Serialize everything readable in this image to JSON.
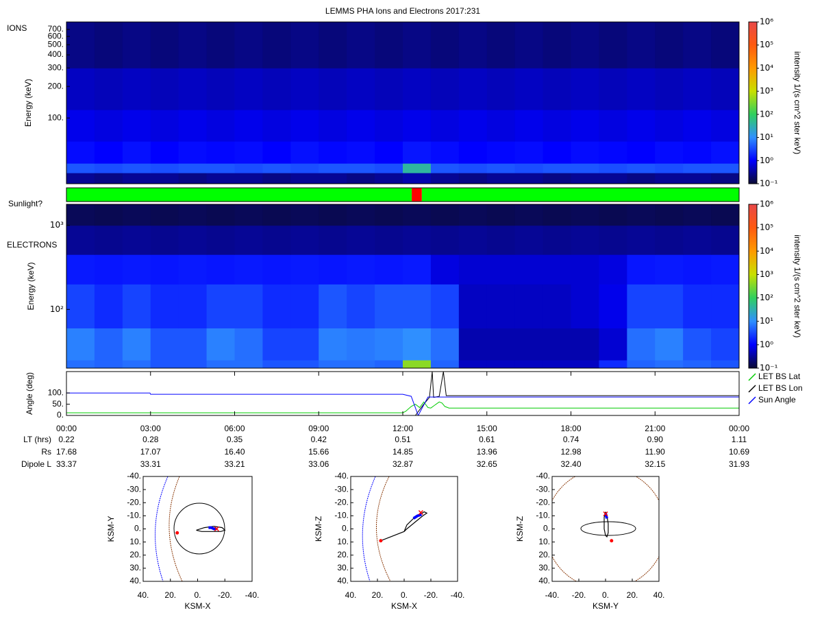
{
  "chart_data": [
    {
      "type": "heatmap",
      "title": "LEMMS PHA Ions and Electrons  2017:231",
      "label": "IONS",
      "ylabel": "Energy (keV)",
      "log_y": true,
      "xlim": [
        0,
        24
      ],
      "ylim": [
        23.6,
        825
      ],
      "yticks": [
        {
          "value": 100,
          "label": "100."
        },
        {
          "value": 200,
          "label": "200."
        },
        {
          "value": 300,
          "label": "300."
        },
        {
          "value": 400,
          "label": "400."
        },
        {
          "value": 500,
          "label": "500."
        },
        {
          "value": 600,
          "label": "600."
        },
        {
          "value": 700,
          "label": "700."
        }
      ],
      "x_bins": [
        0,
        1,
        2,
        3,
        4,
        5,
        6,
        7,
        8,
        9,
        10,
        11,
        12,
        13,
        14,
        15,
        16,
        17,
        18,
        19,
        20,
        21,
        22,
        23,
        24
      ],
      "y_bins": [
        23.6,
        30,
        37,
        60,
        120,
        300,
        825
      ],
      "z": [
        [
          0.3,
          0.25,
          0.3,
          0.3,
          0.25,
          0.3,
          0.3,
          0.25,
          0.3,
          0.3,
          0.25,
          0.3,
          0.4,
          0.3,
          0.25,
          0.3,
          0.3,
          0.25,
          0.3,
          0.3,
          0.25,
          0.3,
          0.3,
          0.25
        ],
        [
          4,
          3.5,
          4,
          3.5,
          4,
          4,
          3.5,
          4,
          3.5,
          4,
          4,
          3.5,
          40,
          4,
          3.5,
          4,
          3.5,
          4,
          4,
          3.5,
          4,
          3.5,
          4,
          4
        ],
        [
          1.2,
          1,
          1.3,
          1,
          1.2,
          1.1,
          1.2,
          1,
          1.3,
          1.1,
          1.2,
          1,
          1.4,
          1.2,
          1,
          1.1,
          1.2,
          1,
          1.2,
          1.1,
          1,
          1.2,
          1.1,
          1.3
        ],
        [
          0.8,
          0.7,
          0.8,
          0.7,
          0.8,
          0.7,
          0.8,
          0.7,
          0.8,
          0.7,
          0.8,
          0.7,
          0.8,
          0.7,
          0.8,
          0.7,
          0.8,
          0.7,
          0.8,
          0.7,
          0.8,
          0.7,
          0.8,
          0.7
        ],
        [
          0.5,
          0.45,
          0.5,
          0.45,
          0.5,
          0.45,
          0.5,
          0.45,
          0.5,
          0.45,
          0.5,
          0.45,
          0.5,
          0.45,
          0.5,
          0.45,
          0.5,
          0.45,
          0.5,
          0.45,
          0.5,
          0.45,
          0.5,
          0.45
        ],
        [
          0.25,
          0.22,
          0.25,
          0.22,
          0.25,
          0.22,
          0.25,
          0.22,
          0.25,
          0.22,
          0.25,
          0.22,
          0.25,
          0.22,
          0.25,
          0.22,
          0.25,
          0.22,
          0.25,
          0.22,
          0.25,
          0.22,
          0.25,
          0.22
        ]
      ],
      "zlim": [
        0.1,
        1000000
      ],
      "zlabel": "intensity 1/(s cm^2 ster keV)",
      "zticks": [
        {
          "value": 0.1,
          "label": "10⁻¹"
        },
        {
          "value": 1,
          "label": "10⁰"
        },
        {
          "value": 10,
          "label": "10¹"
        },
        {
          "value": 100,
          "label": "10²"
        },
        {
          "value": 1000,
          "label": "10³"
        },
        {
          "value": 10000,
          "label": "10⁴"
        },
        {
          "value": 100000,
          "label": "10⁵"
        },
        {
          "value": 1000000,
          "label": "10⁶"
        }
      ],
      "colormap": [
        "#0b0b34",
        "#0000ff",
        "#2f8fff",
        "#2fcf5f",
        "#c8e000",
        "#ff9a00",
        "#ff5a10",
        "#e84848"
      ]
    },
    {
      "type": "timeline",
      "label": "Sunlight?",
      "xlim": [
        0,
        24
      ],
      "intervals": [
        {
          "start": 0,
          "end": 12.32,
          "color": "#00ff00"
        },
        {
          "start": 12.32,
          "end": 12.68,
          "color": "#ff0000"
        },
        {
          "start": 12.68,
          "end": 24,
          "color": "#00ff00"
        }
      ]
    },
    {
      "type": "heatmap",
      "label": "ELECTRONS",
      "ylabel": "Energy (keV)",
      "log_y": true,
      "xlim": [
        0,
        24
      ],
      "ylim": [
        20,
        1780
      ],
      "yticks": [
        {
          "value": 100,
          "label": "10²"
        },
        {
          "value": 1000,
          "label": "10³"
        }
      ],
      "x_bins": [
        0,
        1,
        2,
        3,
        4,
        5,
        6,
        7,
        8,
        9,
        10,
        11,
        12,
        13,
        14,
        15,
        16,
        17,
        18,
        19,
        20,
        21,
        22,
        23,
        24
      ],
      "y_bins": [
        20,
        25,
        60,
        200,
        450,
        1000,
        1780
      ],
      "z": [
        [
          6,
          5,
          6,
          4,
          4,
          6,
          6,
          4,
          4,
          6,
          6,
          5,
          400,
          5,
          0.5,
          0.5,
          0.5,
          0.5,
          0.5,
          2,
          5,
          6,
          5,
          4
        ],
        [
          8,
          5,
          8,
          4,
          4,
          8,
          6,
          3,
          3,
          8,
          7,
          8,
          10,
          6,
          0.4,
          0.4,
          0.4,
          0.4,
          0.4,
          0.6,
          6,
          8,
          4,
          3
        ],
        [
          3,
          2,
          3,
          2,
          2,
          3,
          3,
          2,
          2,
          4,
          3,
          4,
          4,
          3,
          0.5,
          0.5,
          0.5,
          0.5,
          0.6,
          0.8,
          3,
          3,
          2,
          2
        ],
        [
          1.5,
          1.4,
          1.5,
          1.4,
          1.5,
          1.4,
          1.5,
          1.4,
          1.5,
          1.4,
          1.5,
          1.4,
          1.5,
          0.7,
          0.6,
          0.6,
          0.6,
          0.6,
          0.6,
          0.7,
          1.4,
          1.5,
          1.4,
          1.5
        ],
        [
          0.3,
          0.28,
          0.3,
          0.28,
          0.3,
          0.28,
          0.3,
          0.28,
          0.3,
          0.28,
          0.3,
          0.28,
          0.3,
          0.28,
          0.3,
          0.28,
          0.3,
          0.28,
          0.3,
          0.28,
          0.3,
          0.28,
          0.3,
          0.28
        ],
        [
          0.15,
          0.14,
          0.15,
          0.14,
          0.15,
          0.14,
          0.15,
          0.14,
          0.15,
          0.14,
          0.15,
          0.14,
          0.15,
          0.14,
          0.15,
          0.14,
          0.15,
          0.14,
          0.15,
          0.14,
          0.15,
          0.14,
          0.15,
          0.14
        ]
      ],
      "zlim": [
        0.1,
        1000000
      ],
      "zlabel": "intensity 1/(s cm^2 ster keV)",
      "zticks": [
        {
          "value": 0.1,
          "label": "10⁻¹"
        },
        {
          "value": 1,
          "label": "10⁰"
        },
        {
          "value": 10,
          "label": "10¹"
        },
        {
          "value": 100,
          "label": "10²"
        },
        {
          "value": 1000,
          "label": "10³"
        },
        {
          "value": 10000,
          "label": "10⁴"
        },
        {
          "value": 100000,
          "label": "10⁵"
        },
        {
          "value": 1000000,
          "label": "10⁶"
        }
      ],
      "colormap": [
        "#0b0b34",
        "#0000ff",
        "#2f8fff",
        "#2fcf5f",
        "#c8e000",
        "#ff9a00",
        "#ff5a10",
        "#e84848"
      ]
    },
    {
      "type": "line",
      "ylabel": "Angle (deg)",
      "xlim": [
        0,
        24
      ],
      "ylim": [
        0,
        195
      ],
      "yticks": [
        {
          "value": 0,
          "label": "0."
        },
        {
          "value": 50,
          "label": "50."
        },
        {
          "value": 100,
          "label": "100."
        }
      ],
      "xticks": [
        {
          "value": 0,
          "label": "00:00"
        },
        {
          "value": 3,
          "label": "03:00"
        },
        {
          "value": 6,
          "label": "06:00"
        },
        {
          "value": 9,
          "label": "09:00"
        },
        {
          "value": 12,
          "label": "12:00"
        },
        {
          "value": 15,
          "label": "15:00"
        },
        {
          "value": 18,
          "label": "18:00"
        },
        {
          "value": 21,
          "label": "21:00"
        },
        {
          "value": 24,
          "label": "00:00"
        }
      ],
      "series": [
        {
          "name": "LET BS Lat",
          "color": "#00cc00",
          "x": [
            0,
            12.0,
            12.1,
            12.3,
            12.45,
            12.6,
            12.75,
            12.9,
            13.0,
            13.3,
            13.4,
            13.5,
            13.65,
            24
          ],
          "values": [
            12,
            12,
            18,
            40,
            50,
            35,
            60,
            35,
            33,
            60,
            55,
            40,
            33,
            33
          ]
        },
        {
          "name": "LET BS Lon",
          "color": "#000000",
          "x": [
            12.45,
            12.75,
            12.95,
            13.05,
            13.1,
            13.3,
            13.45,
            13.55,
            24
          ],
          "values": [
            0,
            50,
            80,
            195,
            80,
            85,
            195,
            88,
            88
          ]
        },
        {
          "name": "Sun Angle",
          "color": "#0000ff",
          "x": [
            0,
            2.98,
            3.0,
            12.0,
            12.3,
            12.55,
            12.9,
            13.5,
            24
          ],
          "values": [
            100,
            100,
            94,
            94,
            85,
            0,
            82,
            82,
            82
          ]
        }
      ],
      "legend": "outside-right",
      "rows": [
        {
          "label": "LT (hrs)",
          "values": [
            "0.22",
            "0.28",
            "0.35",
            "0.42",
            "0.51",
            "0.61",
            "0.74",
            "0.90",
            "1.11"
          ]
        },
        {
          "label": "Rs",
          "values": [
            "17.68",
            "17.07",
            "16.40",
            "15.66",
            "14.85",
            "13.96",
            "12.98",
            "11.90",
            "10.69"
          ]
        },
        {
          "label": "Dipole L",
          "values": [
            "33.37",
            "33.31",
            "33.21",
            "33.06",
            "32.87",
            "32.65",
            "32.40",
            "32.15",
            "31.93"
          ]
        }
      ]
    },
    {
      "type": "orbit",
      "xlabel": "KSM-X",
      "ylabel": "KSM-Y",
      "xlim": [
        40,
        -40
      ],
      "ylim": [
        40,
        -40
      ],
      "xticks": [
        {
          "value": 40,
          "label": "40."
        },
        {
          "value": 20,
          "label": "20."
        },
        {
          "value": 0,
          "label": "0."
        },
        {
          "value": -20,
          "label": "-20."
        },
        {
          "value": -40,
          "label": "-40."
        }
      ],
      "yticks": [
        {
          "value": -40,
          "label": "-40."
        },
        {
          "value": -30,
          "label": "-30."
        },
        {
          "value": -20,
          "label": "-20."
        },
        {
          "value": -10,
          "label": "-10."
        },
        {
          "value": 0,
          "label": "0."
        },
        {
          "value": 10,
          "label": "10."
        },
        {
          "value": 20,
          "label": "20."
        },
        {
          "value": 30,
          "label": "30."
        },
        {
          "value": 40,
          "label": "40."
        }
      ],
      "colors": {
        "trajectory": "#000000",
        "recent": "#0000ff",
        "position": "#ff0000"
      },
      "trajectory": {
        "x": [
          1,
          -5,
          -12,
          -18,
          -20,
          -17,
          -10,
          -3,
          1
        ],
        "y": [
          1,
          -1,
          -2,
          -1,
          1,
          2,
          2,
          2,
          1
        ]
      },
      "recent": {
        "x": [
          -8,
          -10,
          -12,
          -14
        ],
        "y": [
          -1,
          -1,
          0,
          0
        ]
      },
      "start": {
        "x": 15,
        "y": 3
      },
      "end": {
        "x": -14,
        "y": 0
      }
    },
    {
      "type": "orbit",
      "xlabel": "KSM-X",
      "ylabel": "KSM-Z",
      "xlim": [
        40,
        -40
      ],
      "ylim": [
        40,
        -40
      ],
      "xticks": [
        {
          "value": 40,
          "label": "40."
        },
        {
          "value": 20,
          "label": "20."
        },
        {
          "value": 0,
          "label": "0."
        },
        {
          "value": -20,
          "label": "-20."
        },
        {
          "value": -40,
          "label": "-40."
        }
      ],
      "yticks": [
        {
          "value": -40,
          "label": "-40."
        },
        {
          "value": -30,
          "label": "-30."
        },
        {
          "value": -20,
          "label": "-20."
        },
        {
          "value": -10,
          "label": "-10."
        },
        {
          "value": 0,
          "label": "0."
        },
        {
          "value": 10,
          "label": "10."
        },
        {
          "value": 20,
          "label": "20."
        },
        {
          "value": 30,
          "label": "30."
        },
        {
          "value": 40,
          "label": "40."
        }
      ],
      "colors": {
        "trajectory": "#000000",
        "recent": "#0000ff",
        "position": "#ff0000"
      },
      "trajectory": {
        "x": [
          17.5,
          0,
          -2,
          -8,
          -14,
          -17,
          -15,
          -8,
          -2,
          0
        ],
        "y": [
          9,
          2,
          0,
          -5,
          -10,
          -12,
          -13,
          -9,
          -3,
          2
        ]
      },
      "recent": {
        "x": [
          -7,
          -10,
          -13
        ],
        "y": [
          -8,
          -10,
          -11
        ]
      },
      "start": {
        "x": 17.5,
        "y": 9
      },
      "end": {
        "x": -12.5,
        "y": -12.5
      }
    },
    {
      "type": "orbit",
      "xlabel": "KSM-Y",
      "ylabel": "KSM-Z",
      "xlim": [
        -40,
        40
      ],
      "ylim": [
        40,
        -40
      ],
      "xticks": [
        {
          "value": -40,
          "label": "-40."
        },
        {
          "value": -20,
          "label": "-20."
        },
        {
          "value": 0,
          "label": "0."
        },
        {
          "value": 20,
          "label": "20."
        },
        {
          "value": 40,
          "label": "40."
        }
      ],
      "yticks": [
        {
          "value": -40,
          "label": "-40."
        },
        {
          "value": -30,
          "label": "-30."
        },
        {
          "value": -20,
          "label": "-20."
        },
        {
          "value": -10,
          "label": "-10."
        },
        {
          "value": 0,
          "label": "0."
        },
        {
          "value": 10,
          "label": "10."
        },
        {
          "value": 20,
          "label": "20."
        },
        {
          "value": 30,
          "label": "30."
        },
        {
          "value": 40,
          "label": "40."
        }
      ],
      "colors": {
        "trajectory": "#000000",
        "recent": "#0000ff",
        "position": "#ff0000"
      },
      "trajectory": {
        "x": [
          0,
          1,
          2,
          2,
          1,
          0,
          -1,
          -1,
          0
        ],
        "y": [
          -13,
          -10,
          -4,
          3,
          6,
          5,
          0,
          -9,
          -13
        ]
      },
      "recent": {
        "x": [
          0,
          0.5,
          1
        ],
        "y": [
          -12,
          -10,
          -8
        ]
      },
      "start": {
        "x": 4.5,
        "y": 9
      },
      "end": {
        "x": 0,
        "y": -11.5
      }
    }
  ]
}
